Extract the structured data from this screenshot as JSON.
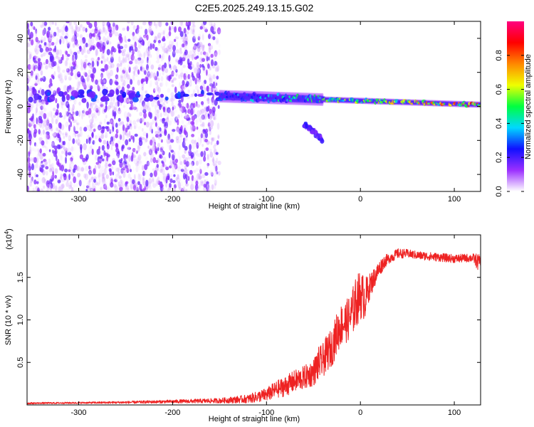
{
  "title": "C2E5.2025.249.13.15.G02",
  "colors": {
    "snr_line": "#ee2222",
    "spectro_background": "#ffffff",
    "spectro_scatter": "#8a2be2",
    "axis": "#000000",
    "colorbar_stops": [
      "#ffffff",
      "#9b30ff",
      "#1010ff",
      "#00d8ff",
      "#00ff40",
      "#f0ff00",
      "#ff8800",
      "#ff0000",
      "#ff0080"
    ]
  },
  "chart_data": [
    {
      "type": "heatmap",
      "name": "spectrogram",
      "title": "C2E5.2025.249.13.15.G02",
      "xlabel": "Height of straight line (km)",
      "ylabel": "Frequency (Hz)",
      "xlim": [
        -355,
        128
      ],
      "ylim": [
        -50,
        50
      ],
      "xticks": [
        -300,
        -200,
        -100,
        0,
        100
      ],
      "xtick_labels": [
        "-300",
        "-200",
        "-100",
        "0",
        "100"
      ],
      "yticks": [
        -40,
        -20,
        0,
        20,
        40
      ],
      "ytick_labels": [
        "-40",
        "-20",
        "0",
        "20",
        "40"
      ],
      "colorbar": {
        "label": "Normalized spectral amplitude",
        "range": [
          0,
          1
        ],
        "ticks": [
          0.0,
          0.2,
          0.4,
          0.6,
          0.8
        ],
        "tick_labels": [
          "0.0",
          "0.2",
          "0.4",
          "0.6",
          "0.8"
        ]
      },
      "features": [
        {
          "x_range": [
            -355,
            -150
          ],
          "freq_range": [
            -50,
            50
          ],
          "amplitude": 0.1,
          "description": "broadband noise"
        },
        {
          "x_range": [
            -355,
            -150
          ],
          "freq_center": 6,
          "amplitude": 0.25,
          "description": "weak carrier line"
        },
        {
          "x_range": [
            -150,
            128
          ],
          "freq_center_start": 6,
          "freq_center_end": 1,
          "amplitude_start": 0.3,
          "amplitude_end": 0.85,
          "description": "main carrier band"
        },
        {
          "x_range": [
            -60,
            -40
          ],
          "freq_start": -10,
          "freq_end": -20,
          "amplitude": 0.2,
          "description": "secondary branch"
        }
      ]
    },
    {
      "type": "line",
      "name": "snr",
      "xlabel": "Height of straight line (km)",
      "ylabel": "SNR (10 * v/v)",
      "scale_note_base": "(x10",
      "scale_note_exp": "4",
      "scale_note_close": ")",
      "xlim": [
        -355,
        128
      ],
      "ylim": [
        0,
        2.0
      ],
      "xticks": [
        -300,
        -200,
        -100,
        0,
        100
      ],
      "xtick_labels": [
        "-300",
        "-200",
        "-100",
        "0",
        "100"
      ],
      "yticks": [
        0.5,
        1.0,
        1.5
      ],
      "ytick_labels": [
        "0.5",
        "1.0",
        "1.5"
      ],
      "series": [
        {
          "name": "SNR",
          "x": [
            -355,
            -300,
            -250,
            -200,
            -150,
            -120,
            -100,
            -90,
            -80,
            -70,
            -60,
            -50,
            -45,
            -40,
            -35,
            -30,
            -25,
            -20,
            -15,
            -10,
            -5,
            0,
            5,
            10,
            15,
            20,
            25,
            30,
            40,
            50,
            60,
            80,
            100,
            120,
            125,
            128
          ],
          "y": [
            0.02,
            0.025,
            0.03,
            0.04,
            0.05,
            0.07,
            0.12,
            0.18,
            0.22,
            0.28,
            0.32,
            0.38,
            0.48,
            0.52,
            0.62,
            0.68,
            0.85,
            0.95,
            0.98,
            1.05,
            1.2,
            1.3,
            1.25,
            1.4,
            1.5,
            1.6,
            1.68,
            1.72,
            1.78,
            1.78,
            1.76,
            1.74,
            1.72,
            1.73,
            1.68,
            1.7
          ],
          "noise": [
            0.01,
            0.01,
            0.015,
            0.02,
            0.03,
            0.05,
            0.08,
            0.1,
            0.12,
            0.13,
            0.14,
            0.16,
            0.2,
            0.2,
            0.22,
            0.22,
            0.25,
            0.25,
            0.25,
            0.28,
            0.3,
            0.3,
            0.25,
            0.15,
            0.12,
            0.1,
            0.08,
            0.06,
            0.06,
            0.05,
            0.05,
            0.05,
            0.05,
            0.05,
            0.1,
            0.05
          ]
        }
      ]
    }
  ]
}
